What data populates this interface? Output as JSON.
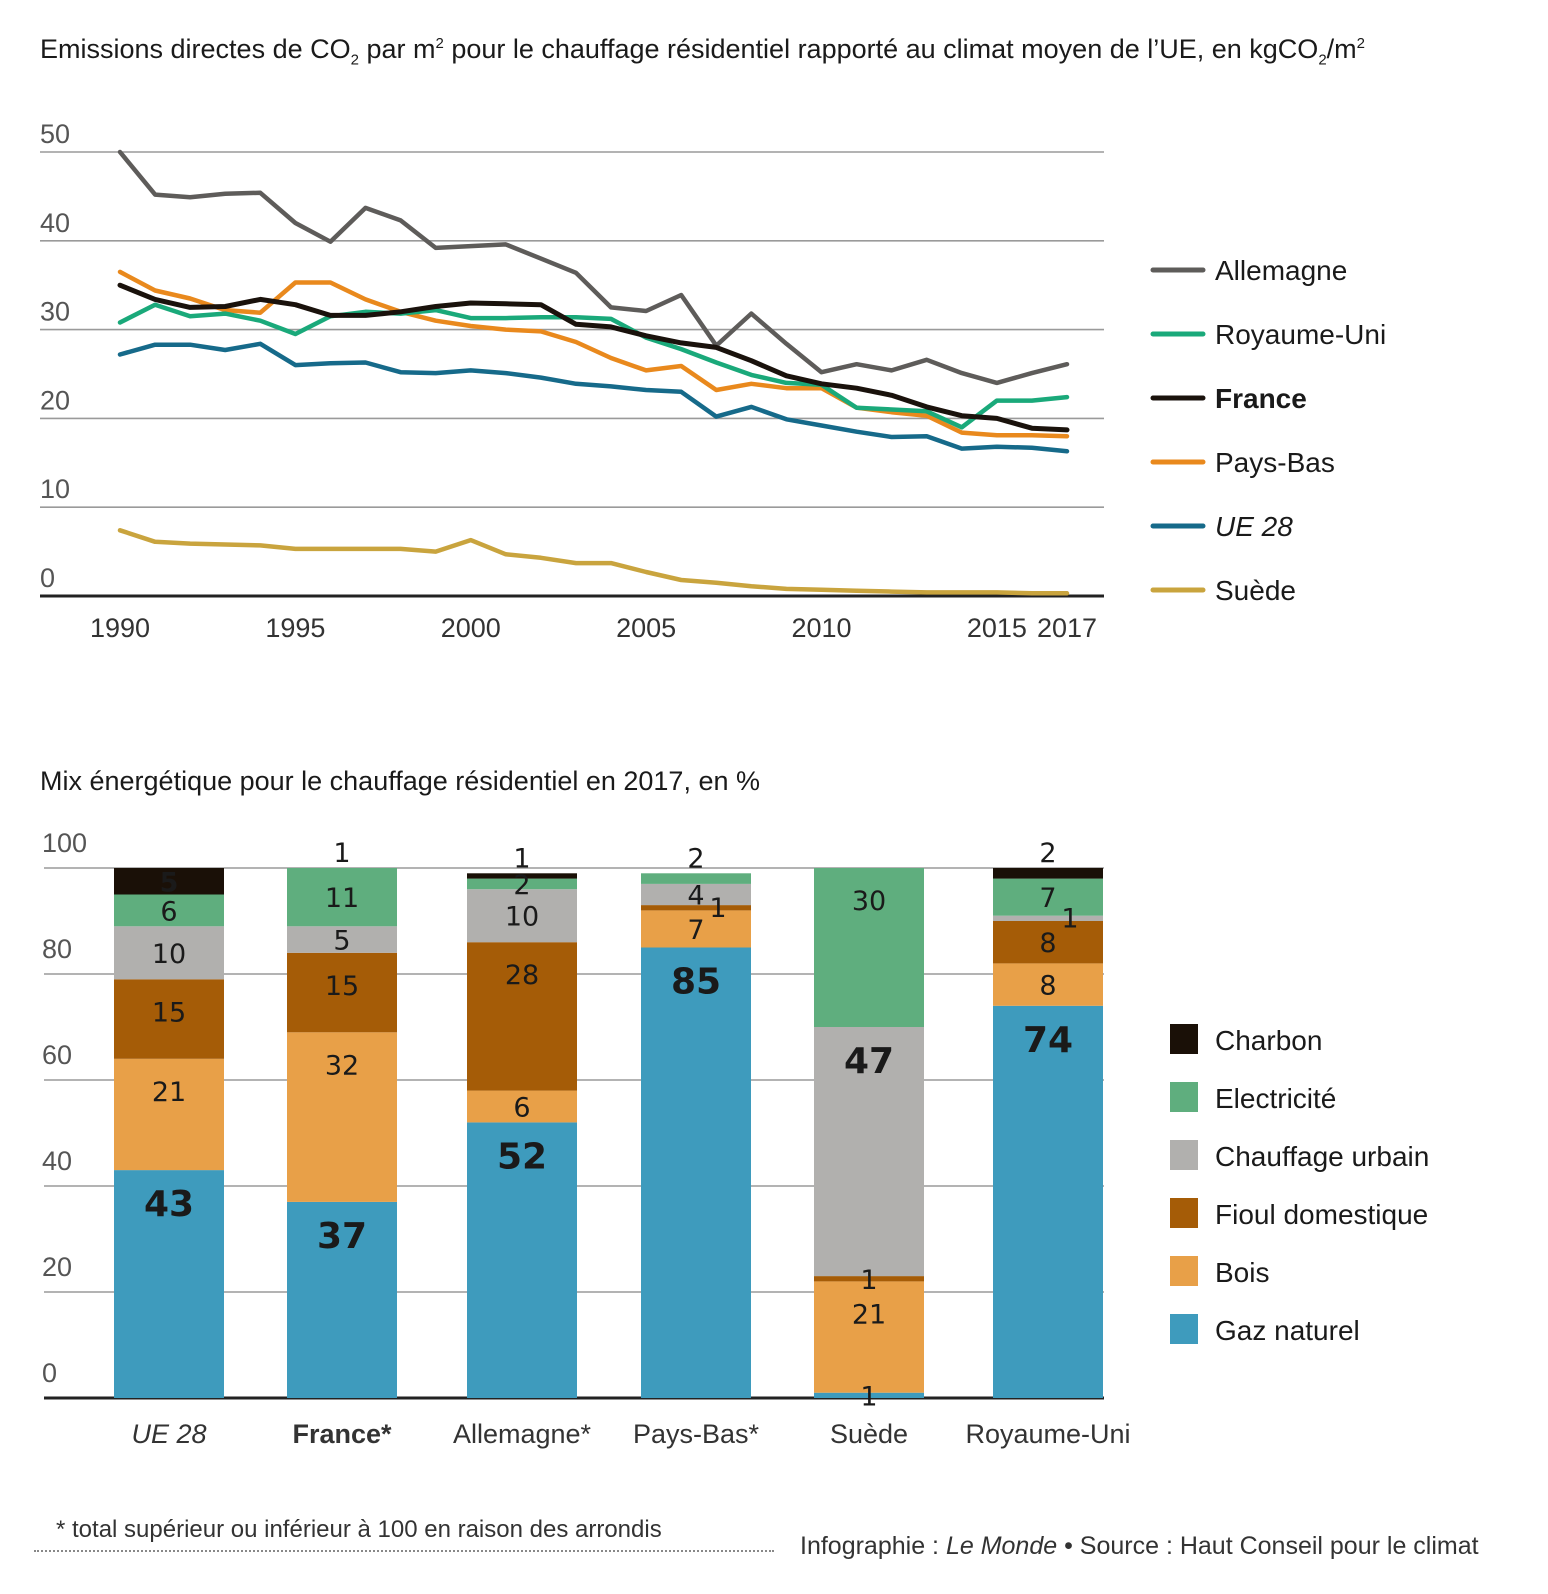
{
  "titles": {
    "line_title_main": "Emissions directes de CO",
    "line_title_sub1": "2",
    "line_title_mid": " par m",
    "line_title_sup1": "2",
    "line_title_rest": " pour le chauffage résidentiel rapporté au climat moyen de l’UE, en kgCO",
    "line_title_sub2": "2",
    "line_title_end": "/m",
    "line_title_sup2": "2",
    "bar_title": "Mix énergétique pour le chauffage résidentiel en 2017, en %"
  },
  "footer": {
    "footnote": "* total supérieur ou inférieur à 100 en raison des arrondis",
    "credit_prefix": "Infographie : ",
    "credit_source_name": "Le Monde",
    "credit_suffix": " • Source : Haut Conseil pour le climat"
  },
  "chart_data": [
    {
      "type": "line",
      "title": "Emissions directes de CO2 par m2 pour le chauffage résidentiel rapporté au climat moyen de l’UE, en kgCO2/m2",
      "x": [
        1990,
        1991,
        1992,
        1993,
        1994,
        1995,
        1996,
        1997,
        1998,
        1999,
        2000,
        2001,
        2002,
        2003,
        2004,
        2005,
        2006,
        2007,
        2008,
        2009,
        2010,
        2011,
        2012,
        2013,
        2014,
        2015,
        2016,
        2017
      ],
      "xticks": [
        "1990",
        "1995",
        "2000",
        "2005",
        "2010",
        "2015",
        "2017"
      ],
      "xtick_values": [
        1990,
        1995,
        2000,
        2005,
        2010,
        2015,
        2017
      ],
      "yticks": [
        "0",
        "10",
        "20",
        "30",
        "40",
        "50"
      ],
      "ylim": [
        0,
        50
      ],
      "grid": true,
      "legend_position": "right",
      "series": [
        {
          "name": "Allemagne",
          "color": "#5e5c5a",
          "bold": false,
          "italic": false,
          "values": [
            50,
            45.2,
            44.9,
            45.3,
            45.4,
            42,
            39.9,
            43.7,
            42.3,
            39.2,
            39.4,
            39.6,
            38,
            36.4,
            32.5,
            32.1,
            33.9,
            28.2,
            31.8,
            28.4,
            25.2,
            26.1,
            25.4,
            26.6,
            25.1,
            24,
            25.1,
            26.1
          ]
        },
        {
          "name": "Royaume-Uni",
          "color": "#1aa97a",
          "bold": false,
          "italic": false,
          "values": [
            30.8,
            32.8,
            31.5,
            31.8,
            31,
            29.5,
            31.5,
            32,
            31.8,
            32.2,
            31.3,
            31.3,
            31.4,
            31.4,
            31.2,
            29.1,
            27.8,
            26.3,
            24.9,
            24,
            23.8,
            21.2,
            21,
            20.8,
            19,
            22,
            22,
            22.4
          ]
        },
        {
          "name": "France",
          "color": "#1a120c",
          "bold": true,
          "italic": false,
          "values": [
            35,
            33.4,
            32.5,
            32.6,
            33.4,
            32.8,
            31.6,
            31.6,
            32,
            32.6,
            33,
            32.9,
            32.8,
            30.6,
            30.3,
            29.3,
            28.5,
            28,
            26.5,
            24.8,
            23.9,
            23.4,
            22.6,
            21.3,
            20.3,
            20,
            18.9,
            18.7
          ]
        },
        {
          "name": "Pays-Bas",
          "color": "#e9891d",
          "bold": false,
          "italic": false,
          "values": [
            36.5,
            34.4,
            33.5,
            32.2,
            31.9,
            35.3,
            35.3,
            33.4,
            32,
            31,
            30.4,
            30,
            29.8,
            28.6,
            26.8,
            25.4,
            25.9,
            23.2,
            23.9,
            23.4,
            23.4,
            21.2,
            20.7,
            20.3,
            18.4,
            18.1,
            18.1,
            18
          ]
        },
        {
          "name": "UE 28",
          "color": "#166a8a",
          "bold": false,
          "italic": true,
          "values": [
            27.2,
            28.3,
            28.3,
            27.7,
            28.4,
            26,
            26.2,
            26.3,
            25.2,
            25.1,
            25.4,
            25.1,
            24.6,
            23.9,
            23.6,
            23.2,
            23,
            20.2,
            21.3,
            19.9,
            19.2,
            18.5,
            17.9,
            18,
            16.6,
            16.8,
            16.7,
            16.3
          ]
        },
        {
          "name": "Suède",
          "color": "#c9a43e",
          "bold": false,
          "italic": false,
          "values": [
            7.4,
            6.1,
            5.9,
            5.8,
            5.7,
            5.3,
            5.3,
            5.3,
            5.3,
            5,
            6.3,
            4.7,
            4.3,
            3.7,
            3.7,
            2.7,
            1.8,
            1.5,
            1.1,
            0.8,
            0.7,
            0.6,
            0.5,
            0.4,
            0.4,
            0.4,
            0.3,
            0.3
          ]
        }
      ]
    },
    {
      "type": "bar",
      "stacked": true,
      "title": "Mix énergétique pour le chauffage résidentiel en 2017, en %",
      "categories": [
        "UE 28",
        "France*",
        "Allemagne*",
        "Pays-Bas*",
        "Suède",
        "Royaume-Uni"
      ],
      "category_style": [
        "italic",
        "bold",
        "normal",
        "normal",
        "normal",
        "normal"
      ],
      "yticks": [
        "0",
        "20",
        "40",
        "60",
        "80",
        "100"
      ],
      "ylim": [
        0,
        100
      ],
      "grid": true,
      "legend_position": "right",
      "series_order_bottom_to_top": [
        "Gaz naturel",
        "Bois",
        "Fioul domestique",
        "Chauffage urbain",
        "Electricité",
        "Charbon"
      ],
      "series": [
        {
          "name": "Gaz naturel",
          "color": "#3e9bbd",
          "values": [
            43,
            37,
            52,
            85,
            1,
            74
          ],
          "labels": [
            "43",
            "37",
            "52",
            "85",
            "1",
            "74"
          ]
        },
        {
          "name": "Bois",
          "color": "#e8a048",
          "values": [
            21,
            32,
            6,
            7,
            21,
            8
          ],
          "labels": [
            "21",
            "32",
            "6",
            "7",
            "21",
            "8"
          ]
        },
        {
          "name": "Fioul domestique",
          "color": "#a55c07",
          "values": [
            15,
            15,
            28,
            1,
            1,
            8
          ],
          "labels": [
            "15",
            "15",
            "28",
            "1",
            "1",
            "8"
          ]
        },
        {
          "name": "Chauffage urbain",
          "color": "#b1b0ae",
          "values": [
            10,
            5,
            10,
            4,
            47,
            1
          ],
          "labels": [
            "10",
            "5",
            "10",
            "4",
            "47",
            "1"
          ]
        },
        {
          "name": "Electricité",
          "color": "#5fae7e",
          "values": [
            6,
            11,
            2,
            2,
            30,
            7
          ],
          "labels": [
            "6",
            "11",
            "2",
            "2",
            "30",
            "7"
          ]
        },
        {
          "name": "Charbon",
          "color": "#1a1007",
          "values": [
            5,
            1,
            1,
            0,
            0,
            2
          ],
          "labels": [
            "5",
            "1",
            "1",
            "",
            "",
            "2"
          ]
        }
      ],
      "legend_order": [
        "Charbon",
        "Electricité",
        "Chauffage urbain",
        "Fioul domestique",
        "Bois",
        "Gaz naturel"
      ]
    }
  ]
}
